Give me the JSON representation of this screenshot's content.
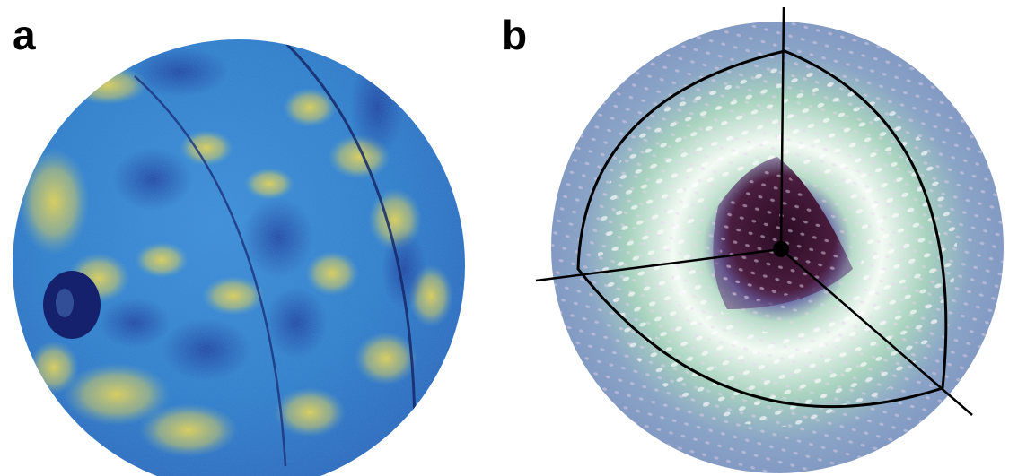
{
  "panels": [
    {
      "label": "a"
    },
    {
      "label": "b"
    }
  ],
  "colors": {
    "panel_a_base": "#2f7fc9",
    "panel_a_dark": "#1b3f9a",
    "panel_a_hot": "#f2d23c",
    "panel_a_spot": "#16216e",
    "panel_b_base": "#8fa8c8",
    "panel_b_light": "#eef7f0",
    "panel_b_mid": "#8fc7b4",
    "panel_b_core": "#3a1830",
    "line": "#000000"
  }
}
